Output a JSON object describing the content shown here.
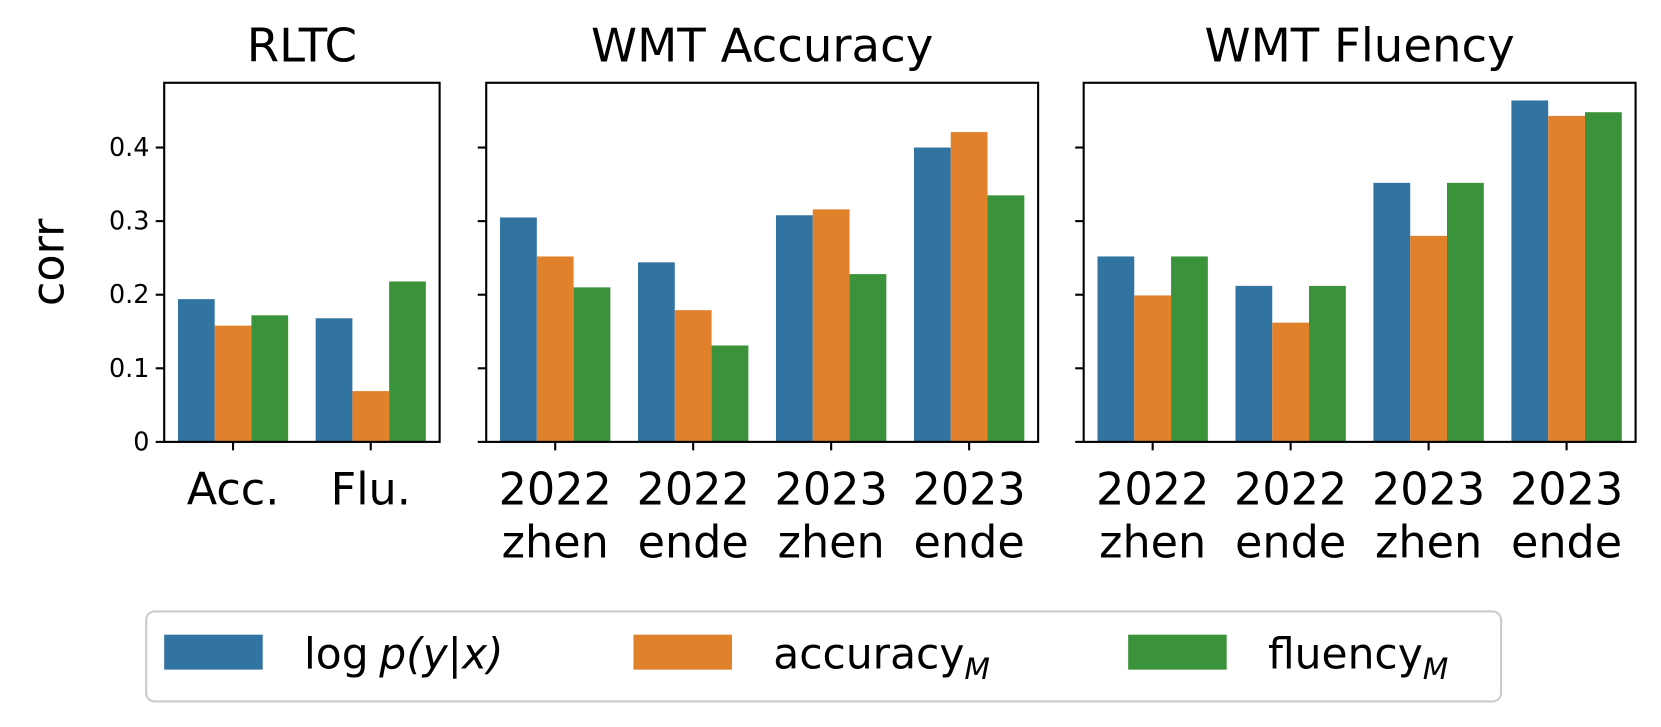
{
  "legend": [
    {
      "name": "log",
      "math": "p(y|x)",
      "color": "#3274a1"
    },
    {
      "name": "accuracy",
      "sub": "M",
      "color": "#e1812c"
    },
    {
      "name": "fluency",
      "sub": "M",
      "color": "#3a923a"
    }
  ],
  "chart_data": [
    {
      "type": "bar",
      "title": "RLTC",
      "y_label": "corr",
      "categories": [
        [
          "Acc."
        ],
        [
          "Flu."
        ]
      ],
      "series": [
        {
          "values": [
            0.194,
            0.168
          ]
        },
        {
          "values": [
            0.158,
            0.069
          ]
        },
        {
          "values": [
            0.172,
            0.218
          ]
        }
      ],
      "ylim": [
        0,
        0.488
      ],
      "yticks": [
        0.0,
        0.1,
        0.2,
        0.3,
        0.4
      ]
    },
    {
      "type": "bar",
      "title": "WMT Accuracy",
      "categories": [
        [
          "2022",
          "zhen"
        ],
        [
          "2022",
          "ende"
        ],
        [
          "2023",
          "zhen"
        ],
        [
          "2023",
          "ende"
        ]
      ],
      "series": [
        {
          "values": [
            0.305,
            0.244,
            0.308,
            0.4
          ]
        },
        {
          "values": [
            0.252,
            0.179,
            0.316,
            0.421
          ]
        },
        {
          "values": [
            0.21,
            0.131,
            0.228,
            0.335
          ]
        }
      ],
      "ylim": [
        0,
        0.488
      ],
      "yticks": [
        0.0,
        0.1,
        0.2,
        0.3,
        0.4
      ]
    },
    {
      "type": "bar",
      "title": "WMT Fluency",
      "categories": [
        [
          "2022",
          "zhen"
        ],
        [
          "2022",
          "ende"
        ],
        [
          "2023",
          "zhen"
        ],
        [
          "2023",
          "ende"
        ]
      ],
      "series": [
        {
          "values": [
            0.252,
            0.212,
            0.352,
            0.464
          ]
        },
        {
          "values": [
            0.199,
            0.162,
            0.28,
            0.443
          ]
        },
        {
          "values": [
            0.252,
            0.212,
            0.352,
            0.448
          ]
        }
      ],
      "ylim": [
        0,
        0.488
      ],
      "yticks": [
        0.0,
        0.1,
        0.2,
        0.3,
        0.4
      ]
    }
  ]
}
